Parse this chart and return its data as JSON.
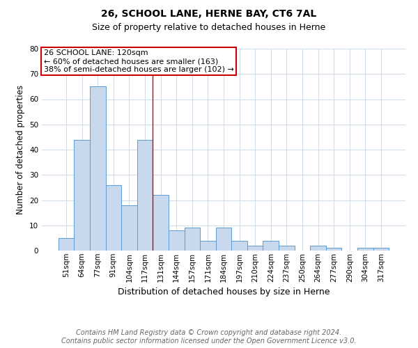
{
  "title": "26, SCHOOL LANE, HERNE BAY, CT6 7AL",
  "subtitle": "Size of property relative to detached houses in Herne",
  "xlabel": "Distribution of detached houses by size in Herne",
  "ylabel": "Number of detached properties",
  "categories": [
    "51sqm",
    "64sqm",
    "77sqm",
    "91sqm",
    "104sqm",
    "117sqm",
    "131sqm",
    "144sqm",
    "157sqm",
    "171sqm",
    "184sqm",
    "197sqm",
    "210sqm",
    "224sqm",
    "237sqm",
    "250sqm",
    "264sqm",
    "277sqm",
    "290sqm",
    "304sqm",
    "317sqm"
  ],
  "values": [
    5,
    44,
    65,
    26,
    18,
    44,
    22,
    8,
    9,
    4,
    9,
    4,
    2,
    4,
    2,
    0,
    2,
    1,
    0,
    1,
    1
  ],
  "bar_color": "#c8d9ed",
  "bar_edge_color": "#5b9bd5",
  "grid_color": "#c8d8e8",
  "vline_x_index": 5,
  "vline_color": "#cc0000",
  "annotation_line1": "26 SCHOOL LANE: 120sqm",
  "annotation_line2": "← 60% of detached houses are smaller (163)",
  "annotation_line3": "38% of semi-detached houses are larger (102) →",
  "annotation_box_color": "#cc0000",
  "ylim": [
    0,
    80
  ],
  "yticks": [
    0,
    10,
    20,
    30,
    40,
    50,
    60,
    70,
    80
  ],
  "footer_line1": "Contains HM Land Registry data © Crown copyright and database right 2024.",
  "footer_line2": "Contains public sector information licensed under the Open Government Licence v3.0.",
  "bg_color": "#ffffff",
  "title_fontsize": 10,
  "subtitle_fontsize": 9,
  "xlabel_fontsize": 9,
  "ylabel_fontsize": 8.5,
  "tick_fontsize": 7.5,
  "annotation_fontsize": 8,
  "footer_fontsize": 7
}
